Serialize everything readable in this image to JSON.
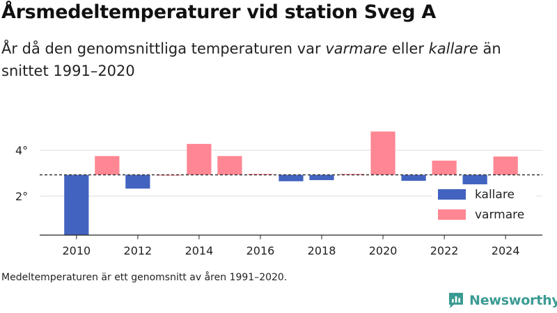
{
  "title": "Årsmedeltemperaturer vid station Sveg A",
  "subtitle": {
    "part1": "År då den genomsnittliga temperaturen var ",
    "warm_word": "varmare",
    "part2": " eller ",
    "cold_word": "kallare",
    "part3": " än snittet 1991–2020"
  },
  "note": "Medeltemperaturen är ett genomsnitt av åren 1991–2020.",
  "brand": {
    "name": "Newsworthy",
    "icon": "newsworthy-logo-icon",
    "color": "#3b9b93"
  },
  "colors": {
    "kallare": "#4263c0",
    "varmare": "#ff8793",
    "average_line": "#333333",
    "grid": "#dddddd",
    "axis": "#222222"
  },
  "chart_data": {
    "type": "bar",
    "baseline": 2.93,
    "ylim": [
      0.3,
      5.4
    ],
    "yticks": [
      2,
      4
    ],
    "ytick_labels": [
      "2°",
      "4°"
    ],
    "xticks": [
      2010,
      2012,
      2014,
      2016,
      2018,
      2020,
      2022,
      2024
    ],
    "xtick_labels": [
      "2010",
      "2012",
      "2014",
      "2016",
      "2018",
      "2020",
      "2022",
      "2024"
    ],
    "xlim": [
      2008.8,
      2025.2
    ],
    "legend": {
      "position": "bottom-right",
      "entries": [
        {
          "key": "kallare",
          "label": "kallare"
        },
        {
          "key": "varmare",
          "label": "varmare"
        }
      ]
    },
    "years": [
      2010,
      2011,
      2012,
      2013,
      2014,
      2015,
      2016,
      2017,
      2018,
      2019,
      2020,
      2021,
      2022,
      2023,
      2024
    ],
    "values": [
      0.3,
      3.75,
      2.33,
      2.93,
      4.28,
      3.75,
      2.97,
      2.65,
      2.7,
      2.97,
      4.82,
      2.67,
      3.55,
      2.17,
      3.73
    ]
  }
}
